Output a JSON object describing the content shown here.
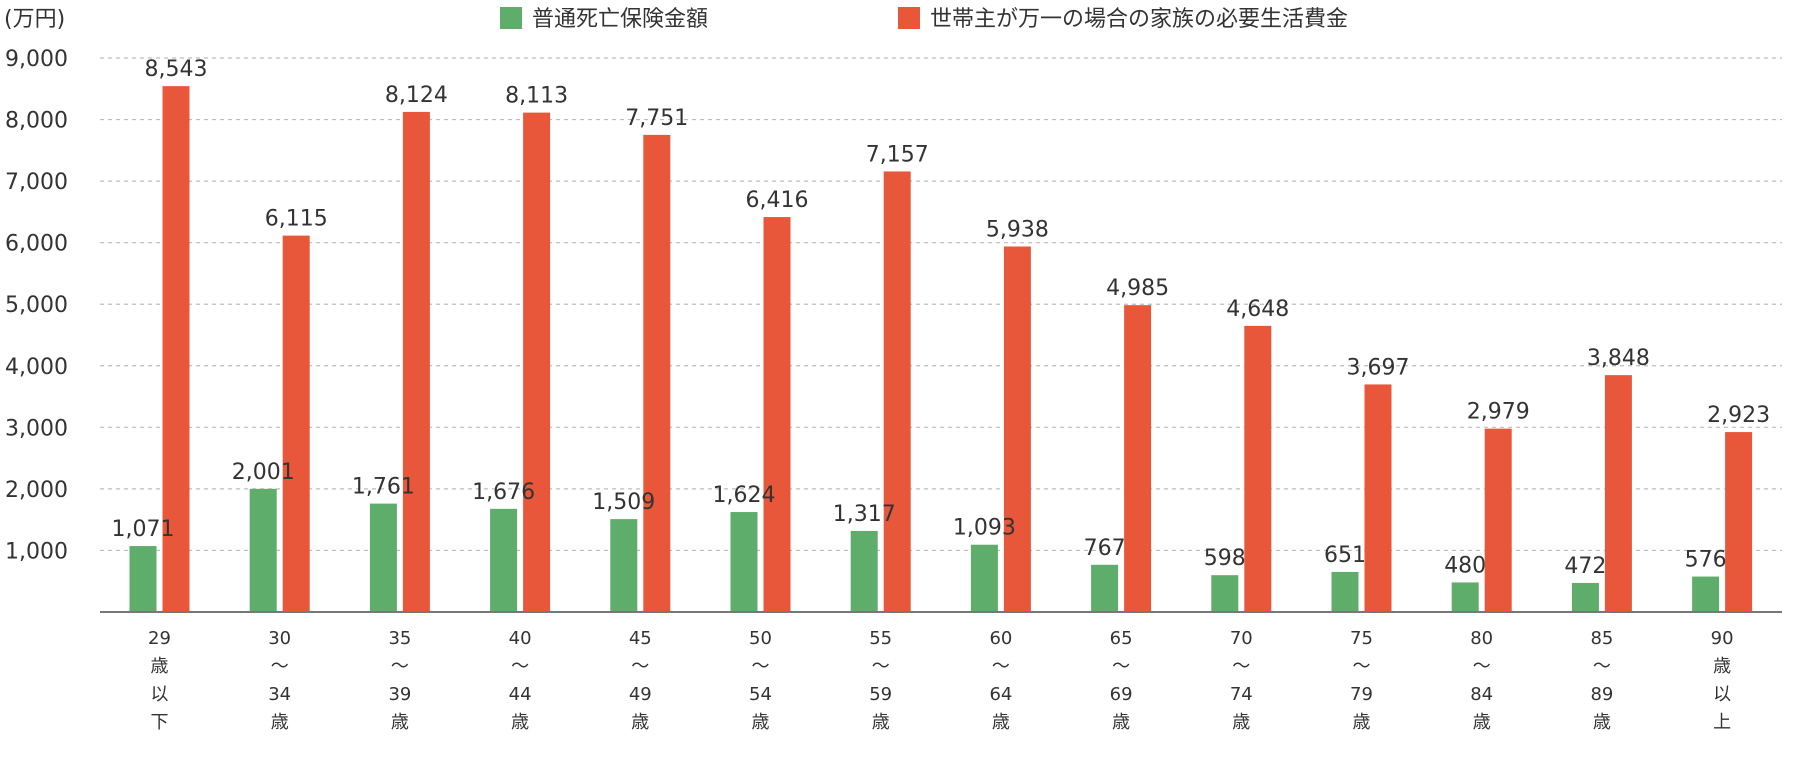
{
  "chart_data": {
    "type": "bar",
    "unit_label": "(万円)",
    "ylim": [
      0,
      9000
    ],
    "yticks": [
      "1,000",
      "2,000",
      "3,000",
      "4,000",
      "5,000",
      "6,000",
      "7,000",
      "8,000",
      "9,000"
    ],
    "ytick_values": [
      1000,
      2000,
      3000,
      4000,
      5000,
      6000,
      7000,
      8000,
      9000
    ],
    "grid": true,
    "legend_position": "top",
    "categories": [
      [
        "29",
        "歳",
        "以",
        "下"
      ],
      [
        "30",
        "〜",
        "34",
        "歳"
      ],
      [
        "35",
        "〜",
        "39",
        "歳"
      ],
      [
        "40",
        "〜",
        "44",
        "歳"
      ],
      [
        "45",
        "〜",
        "49",
        "歳"
      ],
      [
        "50",
        "〜",
        "54",
        "歳"
      ],
      [
        "55",
        "〜",
        "59",
        "歳"
      ],
      [
        "60",
        "〜",
        "64",
        "歳"
      ],
      [
        "65",
        "〜",
        "69",
        "歳"
      ],
      [
        "70",
        "〜",
        "74",
        "歳"
      ],
      [
        "75",
        "〜",
        "79",
        "歳"
      ],
      [
        "80",
        "〜",
        "84",
        "歳"
      ],
      [
        "85",
        "〜",
        "89",
        "歳"
      ],
      [
        "90",
        "歳",
        "以",
        "上"
      ]
    ],
    "series": [
      {
        "name": "普通死亡保険金額",
        "color": "#5fad6a",
        "values": [
          1071,
          2001,
          1761,
          1676,
          1509,
          1624,
          1317,
          1093,
          767,
          598,
          651,
          480,
          472,
          576
        ],
        "labels": [
          "1,071",
          "2,001",
          "1,761",
          "1,676",
          "1,509",
          "1,624",
          "1,317",
          "1,093",
          "767",
          "598",
          "651",
          "480",
          "472",
          "576"
        ]
      },
      {
        "name": "世帯主が万一の場合の家族の必要生活費金",
        "color": "#e9573a",
        "values": [
          8543,
          6115,
          8124,
          8113,
          7751,
          6416,
          7157,
          5938,
          4985,
          4648,
          3697,
          2979,
          3848,
          2923
        ],
        "labels": [
          "8,543",
          "6,115",
          "8,124",
          "8,113",
          "7,751",
          "6,416",
          "7,157",
          "5,938",
          "4,985",
          "4,648",
          "3,697",
          "2,979",
          "3,848",
          "2,923"
        ]
      }
    ]
  }
}
